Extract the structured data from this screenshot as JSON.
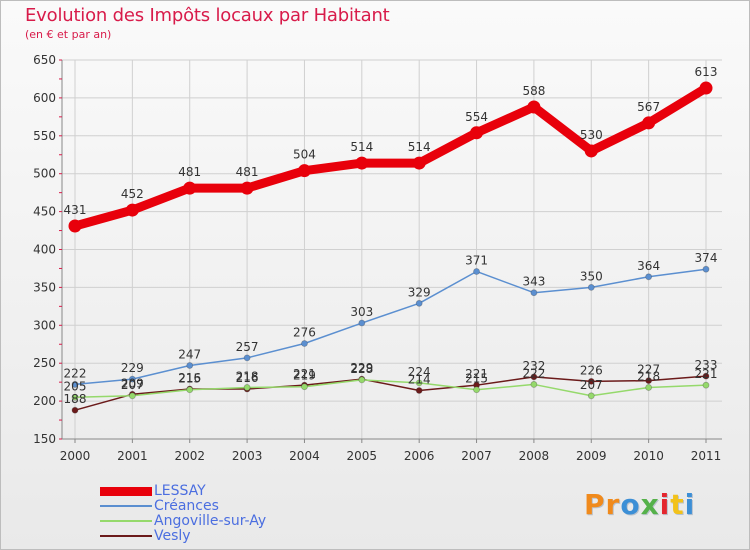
{
  "title": "Evolution des Impôts locaux par Habitant",
  "subtitle": "(en € et par an)",
  "colors": {
    "title": "#d81b4a",
    "axis_text": "#333333",
    "legend_text": "#4b6ee0",
    "grid": "#d0d0d0"
  },
  "logo": {
    "text": "Proxiti",
    "colors": [
      "#f08a1c",
      "#f08a1c",
      "#3c8fd6",
      "#55b14a",
      "#e4262e",
      "#f2c21b",
      "#3c8fd6"
    ]
  },
  "chart_data": {
    "type": "line",
    "title": "Evolution des Impôts locaux par Habitant",
    "subtitle": "(en € et par an)",
    "x": [
      "2000",
      "2001",
      "2002",
      "2003",
      "2004",
      "2005",
      "2006",
      "2007",
      "2008",
      "2009",
      "2010",
      "2011"
    ],
    "ylim": [
      150,
      650
    ],
    "yticks": [
      150,
      200,
      250,
      300,
      350,
      400,
      450,
      500,
      550,
      600,
      650
    ],
    "grid": true,
    "legend_position": "bottom-left",
    "series": [
      {
        "name": "LESSAY",
        "color": "#e8000b",
        "values": [
          431,
          452,
          481,
          481,
          504,
          514,
          514,
          554,
          588,
          530,
          567,
          613
        ],
        "labels": true
      },
      {
        "name": "Créances",
        "color": "#5b8fd0",
        "values": [
          222,
          229,
          247,
          257,
          276,
          303,
          329,
          371,
          343,
          350,
          364,
          374
        ],
        "labels": true
      },
      {
        "name": "Angoville-sur-Ay",
        "color": "#95d96b",
        "values": [
          205,
          207,
          215,
          218,
          219,
          228,
          224,
          215,
          222,
          207,
          218,
          221
        ],
        "labels": true
      },
      {
        "name": "Vesly",
        "color": "#6b1a1a",
        "values": [
          188,
          209,
          216,
          216,
          221,
          229,
          214,
          221,
          232,
          226,
          227,
          233
        ],
        "labels": true
      }
    ]
  }
}
